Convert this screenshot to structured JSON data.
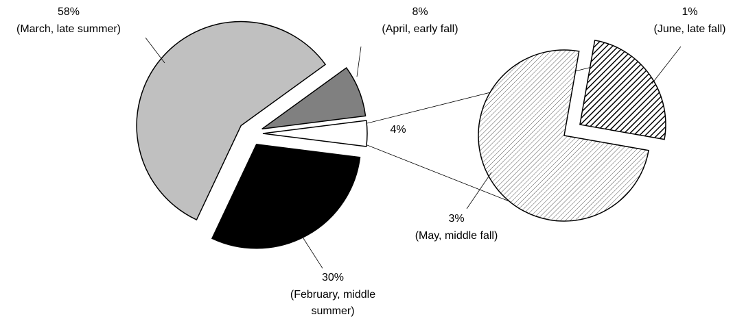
{
  "chart_data": {
    "type": "pie-of-pie",
    "categories": [
      "(February, middle summer)",
      "(March, late summer)",
      "(April, early fall)",
      null
    ],
    "values": [
      30,
      58,
      8,
      4
    ],
    "value_labels": [
      "30%",
      "58%",
      "8%",
      "4%"
    ],
    "colors": [
      "#000000",
      "#c0c0c0",
      "#808080",
      "#ffffff"
    ],
    "secondary": {
      "categories": [
        "(May, middle fall)",
        "(June, late fall)"
      ],
      "values": [
        3,
        1
      ],
      "value_labels": [
        "3%",
        "1%"
      ]
    }
  }
}
